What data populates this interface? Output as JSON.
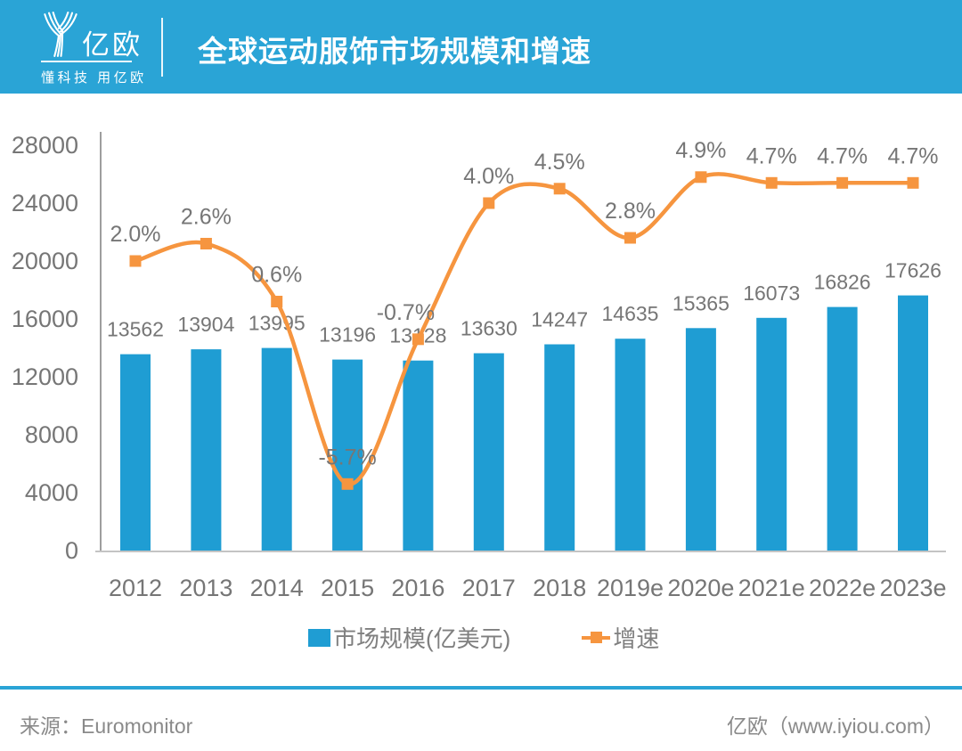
{
  "header": {
    "brand": "亿欧",
    "tagline": "懂科技 用亿欧",
    "title": "全球运动服饰市场规模和增速"
  },
  "chart_data": {
    "type": "bar+line",
    "title": "全球运动服饰市场规模和增速",
    "categories": [
      "2012",
      "2013",
      "2014",
      "2015",
      "2016",
      "2017",
      "2018",
      "2019e",
      "2020e",
      "2021e",
      "2022e",
      "2023e"
    ],
    "series": [
      {
        "name": "市场规模(亿美元)",
        "type": "bar",
        "values": [
          13562,
          13904,
          13995,
          13196,
          13128,
          13630,
          14247,
          14635,
          15365,
          16073,
          16826,
          17626
        ]
      },
      {
        "name": "增速",
        "type": "line",
        "values": [
          2.0,
          2.6,
          0.6,
          -5.7,
          -0.7,
          4.0,
          4.5,
          2.8,
          4.9,
          4.7,
          4.7,
          4.7
        ],
        "labels": [
          "2.0%",
          "2.6%",
          "0.6%",
          "-5.7%",
          "-0.7%",
          "4.0%",
          "4.5%",
          "2.8%",
          "4.9%",
          "4.7%",
          "4.7%",
          "4.7%"
        ]
      }
    ],
    "left_axis": {
      "min": 0,
      "max": 28000,
      "ticks": [
        28000,
        24000,
        20000,
        16000,
        12000,
        8000,
        4000,
        0
      ]
    },
    "right_axis": {
      "visible": false,
      "implied_min": -8,
      "implied_max": 6
    },
    "grid": "off",
    "legend_position": "bottom",
    "colors": {
      "bar": "#1F9DD3",
      "line": "#F6953F",
      "text": "#767676",
      "y_axis_line": "#9E9E9E",
      "x_axis_line": "#C4C4C4"
    }
  },
  "legend": [
    {
      "label": "市场规模(亿美元)"
    },
    {
      "label": "增速"
    }
  ],
  "footer": {
    "source_label": "来源：",
    "source": "Euromonitor",
    "credit": "亿欧（www.iyiou.com）"
  },
  "theme": {
    "header_bg": "#2AA4D6"
  }
}
